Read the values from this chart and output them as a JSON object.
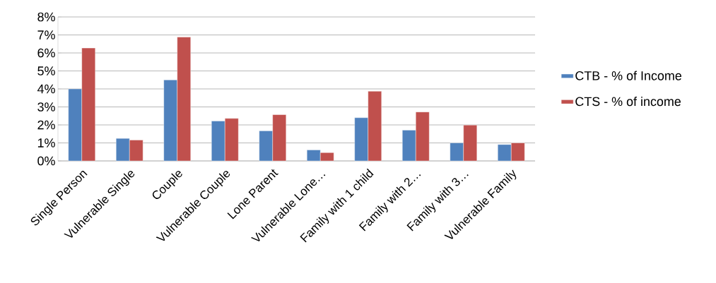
{
  "chart_data": {
    "type": "bar",
    "categories": [
      "Single Person",
      "Vulnerable Single",
      "Couple",
      "Vulnerable Couple",
      "Lone Parent",
      "Vulnerable Lone…",
      "Family with 1 child",
      "Family with 2…",
      "Family with 3…",
      "Vulnerable Family"
    ],
    "series": [
      {
        "name": "CTB - % of Income",
        "color": "#4f81bd",
        "values": [
          4.0,
          1.25,
          4.5,
          2.22,
          1.67,
          0.61,
          2.4,
          1.71,
          1.0,
          0.91
        ]
      },
      {
        "name": "CTS - % of income",
        "color": "#c0504d",
        "values": [
          6.27,
          1.16,
          6.88,
          2.36,
          2.57,
          0.46,
          3.87,
          2.72,
          1.99,
          1.0
        ]
      }
    ],
    "ylim": [
      0,
      8
    ],
    "yticks": [
      {
        "value": 0,
        "label": "0%"
      },
      {
        "value": 1,
        "label": "1%"
      },
      {
        "value": 2,
        "label": "2%"
      },
      {
        "value": 3,
        "label": "3%"
      },
      {
        "value": 4,
        "label": "4%"
      },
      {
        "value": 5,
        "label": "5%"
      },
      {
        "value": 6,
        "label": "6%"
      },
      {
        "value": 7,
        "label": "7%"
      },
      {
        "value": 8,
        "label": "8%"
      }
    ],
    "grid": "y",
    "legend": "right"
  }
}
